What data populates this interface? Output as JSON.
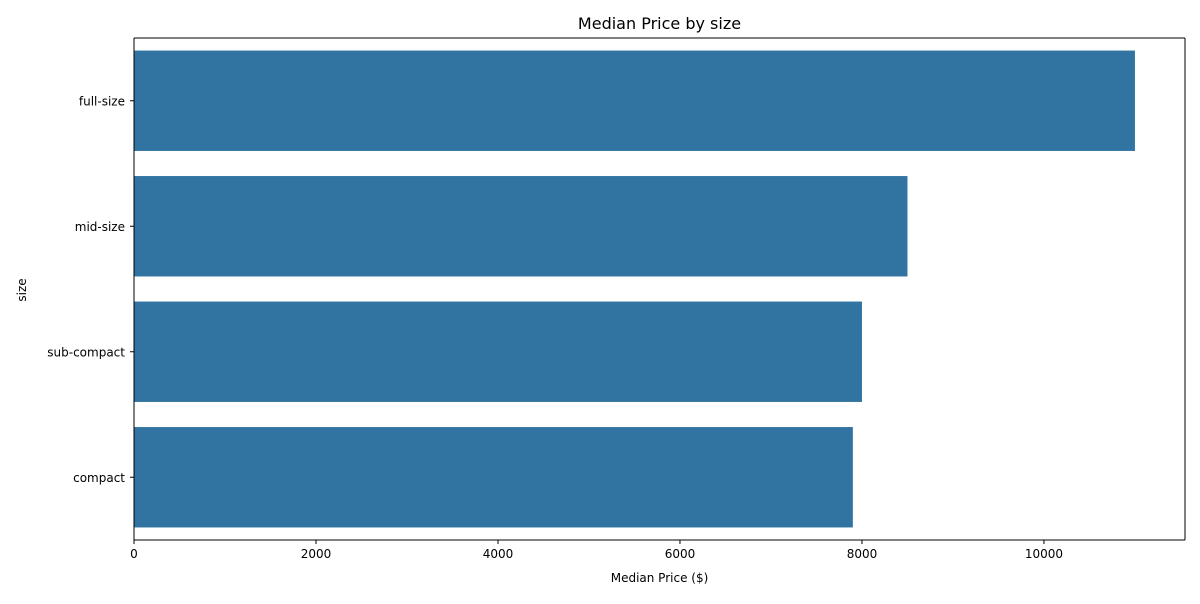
{
  "chart_data": {
    "type": "bar",
    "orientation": "horizontal",
    "title": "Median Price by size",
    "xlabel": "Median Price ($)",
    "ylabel": "size",
    "categories": [
      "full-size",
      "mid-size",
      "sub-compact",
      "compact"
    ],
    "values": [
      11000,
      8500,
      8000,
      7900
    ],
    "xlim": [
      0,
      11550
    ],
    "x_ticks": [
      0,
      2000,
      4000,
      6000,
      8000,
      10000
    ],
    "grid": false,
    "legend": "none",
    "bar_color": "#3274a1"
  }
}
